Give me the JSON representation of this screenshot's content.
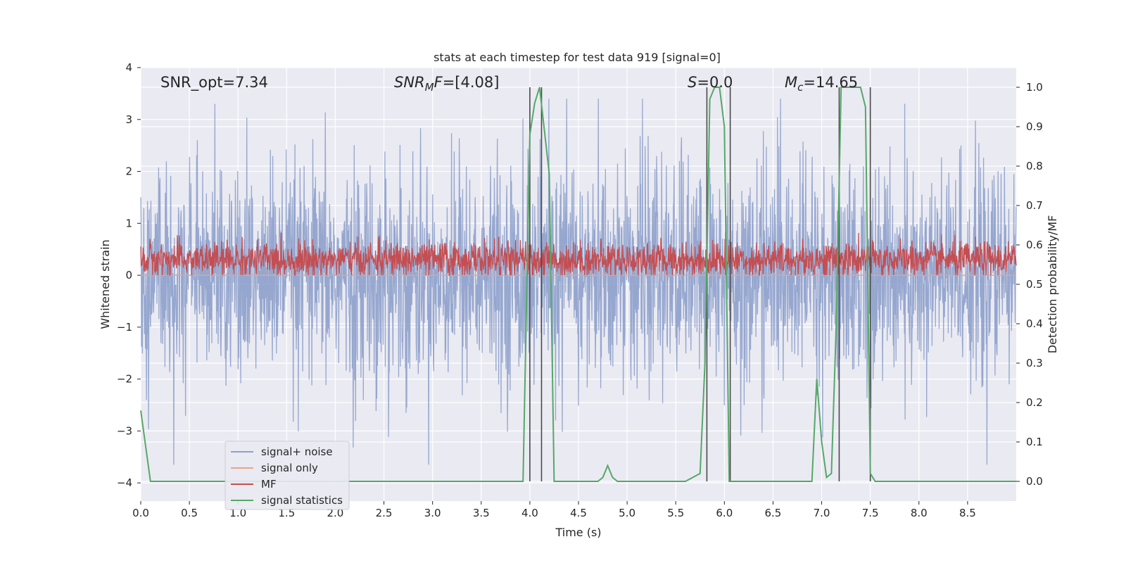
{
  "chart_data": {
    "type": "line",
    "title": "stats at each timestep for test data 919 [signal=0]",
    "xlabel": "Time (s)",
    "ylabel_left": "Whitened strain",
    "ylabel_right": "Detection probability/MF",
    "xlim": [
      0,
      9
    ],
    "ylim_left": [
      -4.35,
      4
    ],
    "ylim_right": [
      -0.05,
      1.05
    ],
    "x_ticks": [
      "0.0",
      "0.5",
      "1.0",
      "1.5",
      "2.0",
      "2.5",
      "3.0",
      "3.5",
      "4.0",
      "4.5",
      "5.0",
      "5.5",
      "6.0",
      "6.5",
      "7.0",
      "7.5",
      "8.0",
      "8.5"
    ],
    "y_ticks_left": [
      "4",
      "3",
      "2",
      "1",
      "0",
      "−1",
      "−2",
      "−3",
      "−4"
    ],
    "y_ticks_right": [
      "1.0",
      "0.9",
      "0.8",
      "0.7",
      "0.6",
      "0.5",
      "0.4",
      "0.3",
      "0.2",
      "0.1",
      "0.0"
    ],
    "grid": true,
    "legend_placement": "lower-left",
    "annotations": [
      {
        "id": "snr_opt",
        "text": "SNR_opt=7.34"
      },
      {
        "id": "snr_mf",
        "text": "SNR_MF=[4.08]"
      },
      {
        "id": "s",
        "text": "S=0.0"
      },
      {
        "id": "mc",
        "text": "M_c=14.65"
      }
    ],
    "series": [
      {
        "name": "signal+ noise",
        "color": "#8da0cb",
        "axis": "left",
        "description": "dense noise trace, approx range -3.6 to 3.4, core band about -1.7 to 1.4"
      },
      {
        "name": "signal only",
        "color": "#e8a487",
        "axis": "left",
        "values_constant": 0.0
      },
      {
        "name": "MF",
        "color": "#c44e52",
        "axis": "left",
        "description": "band roughly 0.0 to 0.8, centered near 0.3"
      },
      {
        "name": "signal statistics",
        "color": "#55a868",
        "axis": "right",
        "x": [
          0.0,
          0.1,
          0.2,
          0.5,
          1.0,
          1.5,
          2.0,
          2.5,
          3.0,
          3.5,
          3.8,
          3.93,
          4.0,
          4.05,
          4.1,
          4.2,
          4.25,
          4.3,
          4.5,
          4.7,
          4.75,
          4.8,
          4.85,
          4.9,
          5.0,
          5.3,
          5.6,
          5.75,
          5.8,
          5.85,
          5.9,
          5.95,
          6.0,
          6.05,
          6.1,
          6.15,
          6.2,
          6.3,
          6.5,
          6.7,
          6.9,
          6.95,
          7.0,
          7.05,
          7.1,
          7.15,
          7.2,
          7.25,
          7.3,
          7.35,
          7.4,
          7.45,
          7.5,
          7.55,
          7.6,
          8.0,
          8.5,
          9.0
        ],
        "values": [
          0.18,
          0.0,
          0.0,
          0.0,
          0.0,
          0.0,
          0.0,
          0.0,
          0.0,
          0.0,
          0.0,
          0.0,
          0.88,
          0.96,
          1.0,
          0.78,
          0.0,
          0.0,
          0.0,
          0.0,
          0.01,
          0.04,
          0.01,
          0.0,
          0.0,
          0.0,
          0.0,
          0.02,
          0.3,
          0.97,
          1.0,
          1.0,
          0.9,
          0.0,
          0.0,
          0.0,
          0.0,
          0.0,
          0.0,
          0.0,
          0.0,
          0.26,
          0.1,
          0.01,
          0.02,
          0.4,
          1.0,
          1.0,
          1.0,
          1.0,
          1.0,
          0.95,
          0.02,
          0.0,
          0.0,
          0.0,
          0.0,
          0.0
        ]
      }
    ],
    "vertical_lines_x": [
      4.0,
      4.12,
      5.82,
      6.06,
      7.18,
      7.5
    ],
    "legend": [
      {
        "label": "signal+ noise",
        "color": "#8da0cb"
      },
      {
        "label": "signal only",
        "color": "#e8a487"
      },
      {
        "label": "MF",
        "color": "#c44e52"
      },
      {
        "label": "signal statistics",
        "color": "#55a868"
      }
    ],
    "colors": {
      "background": "#eaeaf2",
      "grid": "#ffffff",
      "vlines": "#4a4a4a"
    }
  }
}
